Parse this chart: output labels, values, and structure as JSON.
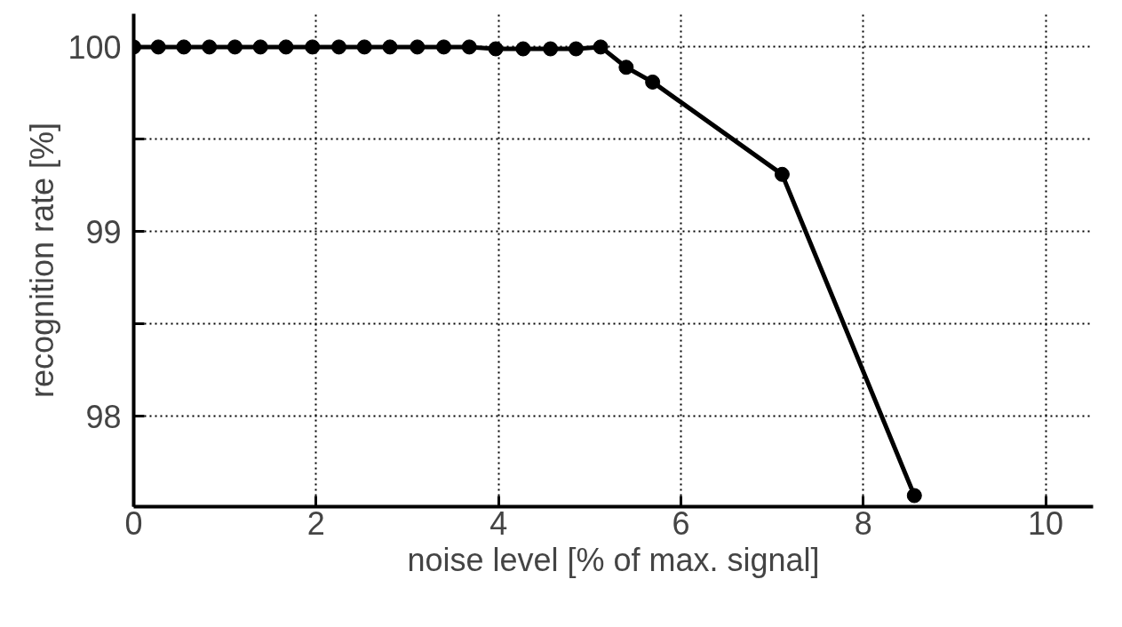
{
  "chart_data": {
    "type": "line",
    "xlabel": "noise level [% of max. signal]",
    "ylabel": "recognition rate [%]",
    "x": [
      0,
      0.27,
      0.55,
      0.83,
      1.11,
      1.39,
      1.67,
      1.96,
      2.25,
      2.53,
      2.81,
      3.11,
      3.4,
      3.68,
      3.97,
      4.27,
      4.57,
      4.85,
      5.12,
      5.4,
      5.69,
      7.11,
      8.56
    ],
    "series": [
      {
        "color": "#000000",
        "values": [
          100,
          100,
          100,
          100,
          100,
          100,
          100,
          100,
          100,
          100,
          100,
          100,
          100,
          100,
          99.99,
          99.99,
          99.99,
          99.99,
          100,
          99.89,
          99.81,
          99.31,
          97.57
        ]
      }
    ],
    "xlim": [
      0,
      10.52
    ],
    "ylim": [
      97.51,
      100.18
    ],
    "xticks": [
      0,
      2,
      4,
      6,
      8,
      10
    ],
    "yticks": [
      {
        "value": 98,
        "label": "98"
      },
      {
        "value": 98.5,
        "label": null
      },
      {
        "value": 99,
        "label": "99"
      },
      {
        "value": 99.5,
        "label": null
      },
      {
        "value": 100,
        "label": "100"
      }
    ],
    "grid": true,
    "marker": "circle",
    "line_style": "solid"
  }
}
